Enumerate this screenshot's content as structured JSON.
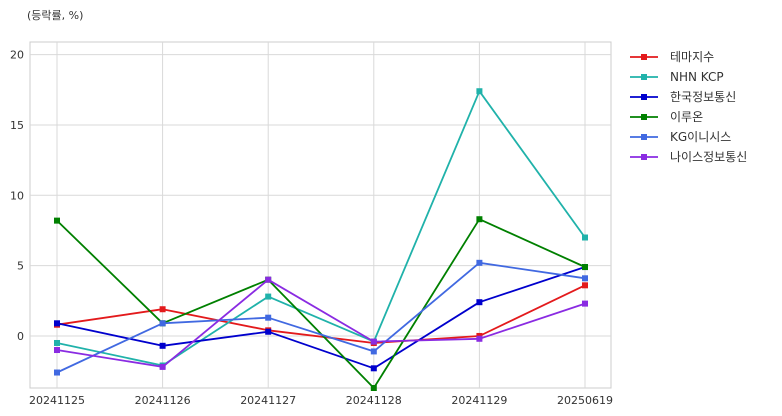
{
  "chart_data": {
    "type": "line",
    "title": "",
    "unit_label": "(등락률, %)",
    "xlabel": "",
    "ylabel": "",
    "x": [
      "20241125",
      "20241126",
      "20241127",
      "20241128",
      "20241129",
      "20250619"
    ],
    "yticks": [
      0,
      5,
      10,
      15,
      20
    ],
    "ylim": [
      -3.7,
      20.9
    ],
    "grid": true,
    "legend_position": "outside-right",
    "series": [
      {
        "name": "테마지수",
        "color": "#e31a1c",
        "values": [
          0.8,
          1.9,
          0.4,
          -0.5,
          0.0,
          3.6
        ]
      },
      {
        "name": "NHN KCP",
        "color": "#20b2aa",
        "values": [
          -0.5,
          -2.1,
          2.8,
          -0.4,
          17.4,
          7.0
        ]
      },
      {
        "name": "한국정보통신",
        "color": "#0000cd",
        "values": [
          0.9,
          -0.7,
          0.3,
          -2.3,
          2.4,
          4.9
        ]
      },
      {
        "name": "이루온",
        "color": "#008000",
        "values": [
          8.2,
          0.9,
          4.0,
          -3.7,
          8.3,
          4.9
        ]
      },
      {
        "name": "KG이니시스",
        "color": "#4169e1",
        "values": [
          -2.6,
          0.9,
          1.3,
          -1.1,
          5.2,
          4.1
        ]
      },
      {
        "name": "나이스정보통신",
        "color": "#8a2be2",
        "values": [
          -1.0,
          -2.2,
          4.0,
          -0.4,
          -0.2,
          2.3
        ]
      }
    ]
  }
}
